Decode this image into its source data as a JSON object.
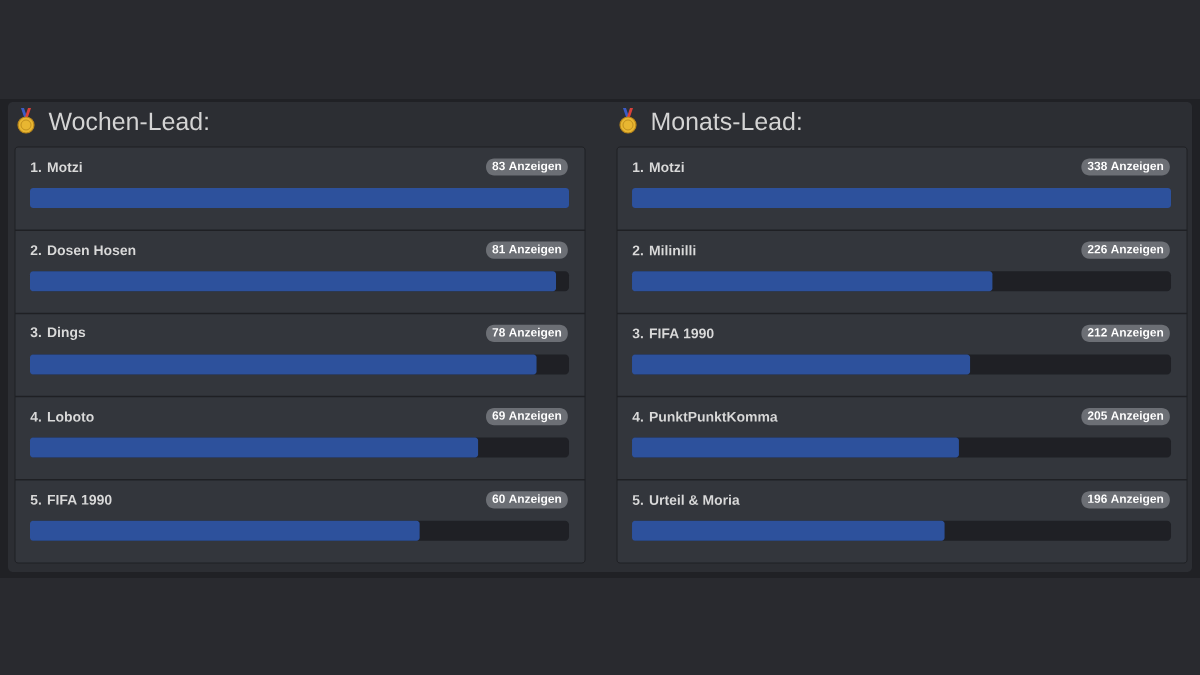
{
  "chart_data": [
    {
      "type": "bar",
      "orientation": "horizontal",
      "title": "Wochen-Lead:",
      "categories": [
        "1. Motzi",
        "2. Dosen Hosen",
        "3. Dings",
        "4. Loboto",
        "5. FIFA 1990"
      ],
      "values": [
        83,
        81,
        78,
        69,
        60
      ],
      "value_labels": [
        "83 Anzeigen",
        "81 Anzeigen",
        "78 Anzeigen",
        "69 Anzeigen",
        "60 Anzeigen"
      ],
      "color": "#2d519c",
      "xlim": [
        0,
        83
      ],
      "tick_labels": "y"
    },
    {
      "type": "bar",
      "orientation": "horizontal",
      "title": "Monats-Lead:",
      "categories": [
        "1. Motzi",
        "2. Milinilli",
        "3. FIFA 1990",
        "4. PunktPunktKomma",
        "5. Urteil & Moria"
      ],
      "values": [
        338,
        226,
        212,
        205,
        196
      ],
      "value_labels": [
        "338 Anzeigen",
        "226 Anzeigen",
        "212 Anzeigen",
        "205 Anzeigen",
        "196 Anzeigen"
      ],
      "color": "#2d519c",
      "xlim": [
        0,
        338
      ],
      "tick_labels": "y"
    }
  ]
}
